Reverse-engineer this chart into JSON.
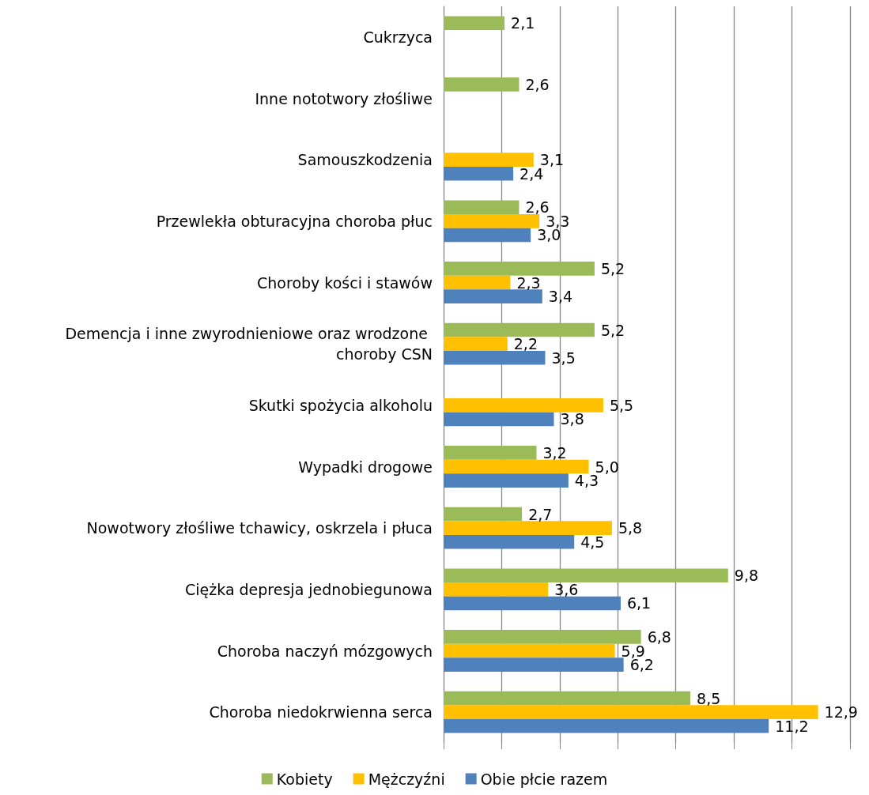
{
  "chart_data": {
    "type": "bar",
    "orientation": "horizontal",
    "categories": [
      "Cukrzyca",
      "Inne nototwory złośliwe",
      "Samouszkodzenia",
      "Przewlekła obturacyjna choroba płuc",
      "Choroby kości i stawów",
      "Demencja i inne zwyrodnieniowe oraz wrodzone choroby CSN",
      "Skutki spożycia alkoholu",
      "Wypadki drogowe",
      "Nowotwory złośliwe tchawicy, oskrzela i płuca",
      "Ciężka depresja jednobiegunowa",
      "Choroba naczyń mózgowych",
      "Choroba niedokrwienna serca"
    ],
    "series": [
      {
        "name": "Kobiety",
        "color": "#9bbb59",
        "values": [
          2.1,
          2.6,
          null,
          2.6,
          5.2,
          5.2,
          null,
          3.2,
          2.7,
          9.8,
          6.8,
          8.5
        ],
        "value_labels": [
          "2,1",
          "2,6",
          null,
          "2,6",
          "5,2",
          "5,2",
          null,
          "3,2",
          "2,7",
          "9,8",
          "6,8",
          "8,5"
        ]
      },
      {
        "name": "Mężczyźni",
        "color": "#ffc000",
        "values": [
          null,
          null,
          3.1,
          3.3,
          2.3,
          2.2,
          5.5,
          5.0,
          5.8,
          3.6,
          5.9,
          12.9
        ],
        "value_labels": [
          null,
          null,
          "3,1",
          "3,3",
          "2,3",
          "2,2",
          "5,5",
          "5,0",
          "5,8",
          "3,6",
          "5,9",
          "12,9"
        ]
      },
      {
        "name": "Obie płcie razem",
        "color": "#4f81bd",
        "values": [
          null,
          null,
          2.4,
          3.0,
          3.4,
          3.5,
          3.8,
          4.3,
          4.5,
          6.1,
          6.2,
          11.2
        ],
        "value_labels": [
          null,
          null,
          "2,4",
          "3,0",
          "3,4",
          "3,5",
          "3,8",
          "4,3",
          "4,5",
          "6,1",
          "6,2",
          "11,2"
        ]
      }
    ],
    "xlim": [
      0,
      14
    ],
    "xticks": [
      {
        "value": 0,
        "label": null
      },
      {
        "value": 2,
        "label": null
      },
      {
        "value": 4,
        "label": null
      },
      {
        "value": 6,
        "label": null
      },
      {
        "value": 8,
        "label": null
      },
      {
        "value": 10,
        "label": null
      },
      {
        "value": 12,
        "label": null
      },
      {
        "value": 14,
        "label": null
      }
    ],
    "grid": "x",
    "legend": "bottom",
    "tick_labels": "y"
  }
}
